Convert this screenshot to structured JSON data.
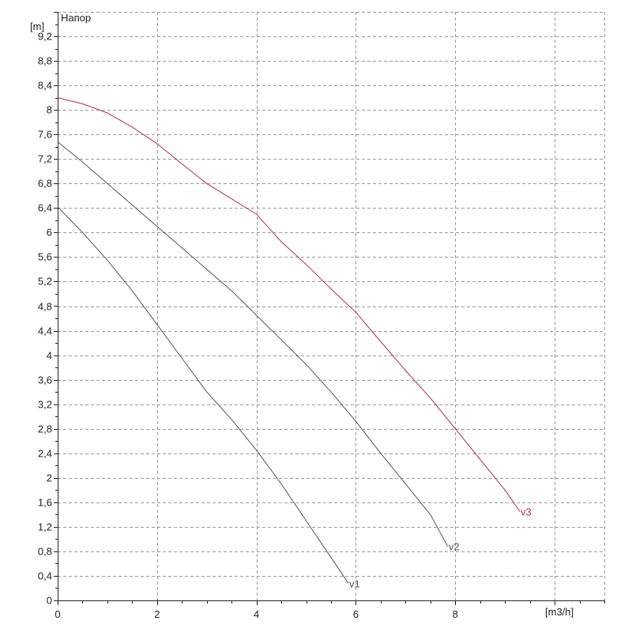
{
  "chart_data": {
    "type": "line",
    "title": "Напор",
    "ylabel": "[m]",
    "xlabel": "[m3/h]",
    "xlim": [
      0,
      11
    ],
    "ylim": [
      0,
      9.6
    ],
    "x_ticks": [
      0,
      2,
      4,
      6,
      8
    ],
    "x_tick_labels": [
      "0",
      "2",
      "4",
      "6",
      "8"
    ],
    "y_ticks": [
      0,
      0.4,
      0.8,
      1.2,
      1.6,
      2,
      2.4,
      2.8,
      3.2,
      3.6,
      4,
      4.4,
      4.8,
      5.2,
      5.6,
      6,
      6.4,
      6.8,
      7.2,
      7.6,
      8,
      8.4,
      8.8,
      9.2
    ],
    "y_tick_labels": [
      "0",
      "0,4",
      "0,8",
      "1,2",
      "1,6",
      "2",
      "2,4",
      "2,8",
      "3,2",
      "3,6",
      "4",
      "4,4",
      "4,8",
      "5,2",
      "5,6",
      "6",
      "6,4",
      "6,8",
      "7,2",
      "7,6",
      "8",
      "8,4",
      "8,8",
      "9,2"
    ],
    "grid": true,
    "series": [
      {
        "name": "v1",
        "color": "#555555",
        "x": [
          0,
          0.5,
          1,
          1.5,
          2,
          2.5,
          3,
          3.5,
          4,
          4.5,
          5,
          5.5,
          5.85
        ],
        "y": [
          6.42,
          6.0,
          5.55,
          5.05,
          4.5,
          3.95,
          3.4,
          2.95,
          2.45,
          1.9,
          1.3,
          0.7,
          0.28
        ]
      },
      {
        "name": "v2",
        "color": "#555555",
        "x": [
          0,
          0.5,
          1,
          1.5,
          2,
          2.5,
          3,
          3.5,
          4,
          4.5,
          5,
          5.5,
          6,
          6.5,
          7,
          7.5,
          7.85
        ],
        "y": [
          7.48,
          7.15,
          6.8,
          6.45,
          6.1,
          5.75,
          5.4,
          5.05,
          4.65,
          4.25,
          3.85,
          3.4,
          2.92,
          2.4,
          1.9,
          1.4,
          0.88
        ]
      },
      {
        "name": "v3",
        "color": "#b03040",
        "x": [
          0,
          0.5,
          1,
          1.5,
          2,
          2.5,
          3,
          3.5,
          4,
          4.5,
          5,
          5.5,
          6,
          6.5,
          7,
          7.5,
          8,
          8.5,
          9,
          9.3
        ],
        "y": [
          8.2,
          8.1,
          7.95,
          7.72,
          7.45,
          7.12,
          6.8,
          6.55,
          6.3,
          5.85,
          5.48,
          5.08,
          4.7,
          4.22,
          3.75,
          3.3,
          2.8,
          2.3,
          1.8,
          1.45
        ]
      }
    ]
  }
}
